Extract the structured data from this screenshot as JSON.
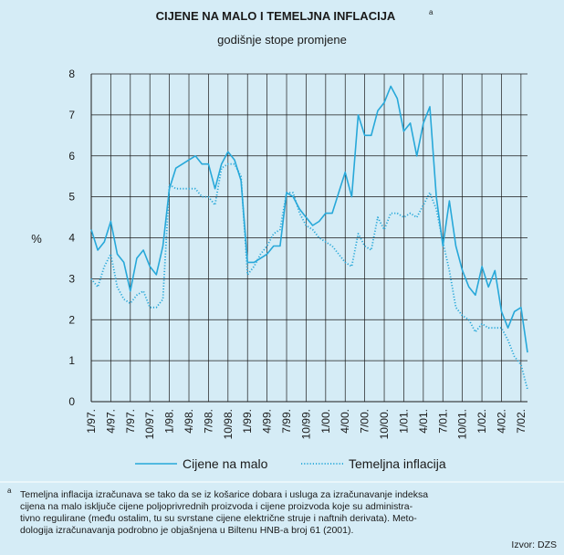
{
  "chart_data": {
    "type": "line",
    "title": "CIJENE NA MALO I TEMELJNA INFLACIJA",
    "title_superscript": "a",
    "subtitle": "godišnje stope promjene",
    "ylabel": "%",
    "categories": [
      "1/97.",
      null,
      null,
      "4/97.",
      null,
      null,
      "7/97.",
      null,
      null,
      "10/97.",
      null,
      null,
      "1/98.",
      null,
      null,
      "4/98.",
      null,
      null,
      "7/98.",
      null,
      null,
      "10/98.",
      null,
      null,
      "1/99.",
      null,
      null,
      "4/99.",
      null,
      null,
      "7/99.",
      null,
      null,
      "10/99.",
      null,
      null,
      "1/00.",
      null,
      null,
      "4/00.",
      null,
      null,
      "7/00.",
      null,
      null,
      "10/00.",
      null,
      null,
      "1/01.",
      null,
      null,
      "4/01.",
      null,
      null,
      "7/01.",
      null,
      null,
      "10/01.",
      null,
      null,
      "1/02.",
      null,
      null,
      "4/02.",
      null,
      null,
      "7/02.",
      null
    ],
    "series": [
      {
        "name": "Cijene na malo",
        "color": "#27a8d9",
        "style": "solid",
        "values": [
          4.2,
          3.7,
          3.9,
          4.4,
          3.6,
          3.4,
          2.7,
          3.5,
          3.7,
          3.3,
          3.1,
          3.8,
          5.2,
          5.7,
          5.8,
          5.9,
          6.0,
          5.8,
          5.8,
          5.2,
          5.8,
          6.1,
          5.9,
          5.4,
          3.4,
          3.4,
          3.5,
          3.6,
          3.8,
          3.8,
          5.1,
          5.0,
          4.7,
          4.5,
          4.3,
          4.4,
          4.6,
          4.6,
          5.1,
          5.6,
          5.0,
          7.0,
          6.5,
          6.5,
          7.1,
          7.3,
          7.7,
          7.4,
          6.6,
          6.8,
          6.0,
          6.8,
          7.2,
          5.0,
          3.8,
          4.9,
          3.8,
          3.2,
          2.8,
          2.6,
          3.3,
          2.8,
          3.2,
          2.2,
          1.8,
          2.2,
          2.3,
          1.2
        ]
      },
      {
        "name": "Temeljna inflacija",
        "color": "#27a8d9",
        "style": "dotted",
        "values": [
          3.0,
          2.8,
          3.3,
          3.6,
          2.8,
          2.5,
          2.4,
          2.6,
          2.7,
          2.3,
          2.3,
          2.5,
          5.3,
          5.2,
          5.2,
          5.2,
          5.2,
          5.0,
          5.0,
          4.8,
          5.7,
          5.8,
          5.8,
          5.5,
          3.1,
          3.3,
          3.6,
          3.8,
          4.1,
          4.2,
          5.1,
          5.1,
          4.6,
          4.3,
          4.2,
          4.0,
          3.9,
          3.8,
          3.6,
          3.4,
          3.3,
          4.1,
          3.8,
          3.7,
          4.5,
          4.2,
          4.6,
          4.6,
          4.5,
          4.6,
          4.5,
          4.8,
          5.1,
          4.7,
          3.9,
          3.2,
          2.3,
          2.1,
          2.0,
          1.7,
          1.9,
          1.8,
          1.8,
          1.8,
          1.5,
          1.1,
          0.9,
          0.3
        ]
      }
    ],
    "ylim": [
      0,
      8
    ],
    "yticks": [
      0,
      1,
      2,
      3,
      4,
      5,
      6,
      7,
      8
    ],
    "grid": true,
    "legend": "bottom",
    "footnote_marker": "a",
    "footnote": [
      "Temeljna inflacija izračunava se tako da se iz košarice dobara i usluga za izračunavanje indeksa",
      "cijena na malo isključe cijene poljoprivrednih proizvoda i cijene proizvoda koje su administra-",
      "tivno regulirane (među ostalim, tu su svrstane cijene električne struje i naftnih derivata). Meto-",
      "dologija izračunavanja podrobno je objašnjena u Biltenu HNB-a broj 61 (2001)."
    ],
    "source": "Izvor: DZS"
  }
}
